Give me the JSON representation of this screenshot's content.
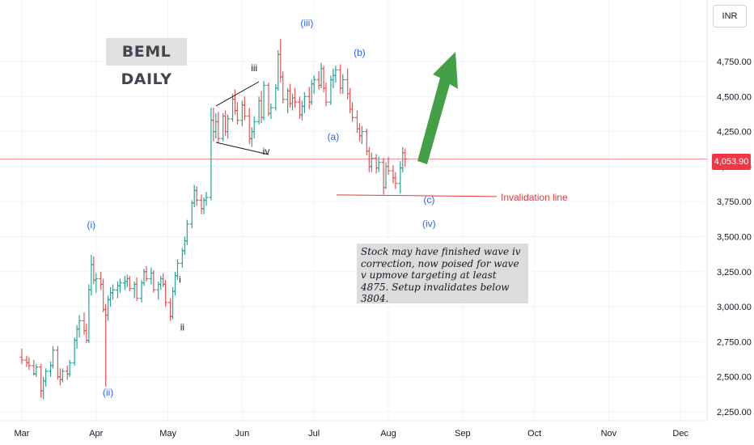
{
  "title": "BEML DAILY",
  "currency": "INR",
  "current_price": "4,053.90",
  "note": "Stock may have finished wave iv correction, now poised for wave v upmove targeting at least 4875. Setup invalidates below 3804.",
  "invalidation_label": "Invalidation line",
  "colors": {
    "up": "#26a69a",
    "down": "#ef5350",
    "label_blue": "#2962ff",
    "label_black": "#131722",
    "invalidation": "#e53935",
    "arrow": "#43a047",
    "price_line": "#f23645"
  },
  "chart_data": {
    "type": "ohlc",
    "title": "BEML DAILY",
    "xlabel": "",
    "ylabel": "",
    "ylim": [
      2200,
      5080
    ],
    "y_ticks": [
      "2,250.00",
      "2,500.00",
      "2,750.00",
      "3,000.00",
      "3,250.00",
      "3,500.00",
      "3,750.00",
      "4,000.00",
      "4,250.00",
      "4,500.00",
      "4,750.00"
    ],
    "y_tick_values": [
      2250,
      2500,
      2750,
      3000,
      3250,
      3500,
      3750,
      4000,
      4250,
      4500,
      4750
    ],
    "x_ticks": [
      "Mar",
      "Apr",
      "May",
      "Jun",
      "Jul",
      "Aug",
      "Sep",
      "Oct",
      "Nov",
      "Dec"
    ],
    "x_tick_days": [
      0,
      31,
      61,
      92,
      122,
      153,
      184,
      214,
      245,
      275
    ],
    "date_range": [
      "2024-03-01",
      "2024-12-15"
    ],
    "last_price": 4053.9,
    "invalidation_level": 3804,
    "target_level": 4875,
    "wave_labels": [
      {
        "text": "(i)",
        "day": 29,
        "price": 3560,
        "color": "blue"
      },
      {
        "text": "(ii)",
        "day": 36,
        "price": 2365,
        "color": "blue"
      },
      {
        "text": "i",
        "day": 66,
        "price": 3170,
        "color": "black"
      },
      {
        "text": "ii",
        "day": 67,
        "price": 2830,
        "color": "black"
      },
      {
        "text": "iii",
        "day": 97,
        "price": 4680,
        "color": "black"
      },
      {
        "text": "iv",
        "day": 102,
        "price": 4085,
        "color": "black"
      },
      {
        "text": "(iii)",
        "day": 119,
        "price": 5000,
        "color": "blue"
      },
      {
        "text": "(a)",
        "day": 130,
        "price": 4190,
        "color": "blue"
      },
      {
        "text": "(b)",
        "day": 141,
        "price": 4790,
        "color": "blue"
      },
      {
        "text": "(c)",
        "day": 170,
        "price": 3740,
        "color": "blue"
      },
      {
        "text": "(iv)",
        "day": 170,
        "price": 3570,
        "color": "blue"
      }
    ],
    "series": [
      {
        "day": 0,
        "o": 2640,
        "h": 2700,
        "l": 2590,
        "c": 2620
      },
      {
        "day": 2,
        "o": 2620,
        "h": 2650,
        "l": 2570,
        "c": 2600
      },
      {
        "day": 3,
        "o": 2600,
        "h": 2640,
        "l": 2550,
        "c": 2580
      },
      {
        "day": 5,
        "o": 2580,
        "h": 2620,
        "l": 2510,
        "c": 2520
      },
      {
        "day": 6,
        "o": 2520,
        "h": 2590,
        "l": 2500,
        "c": 2570
      },
      {
        "day": 8,
        "o": 2570,
        "h": 2590,
        "l": 2350,
        "c": 2400
      },
      {
        "day": 9,
        "o": 2400,
        "h": 2500,
        "l": 2340,
        "c": 2470
      },
      {
        "day": 10,
        "o": 2470,
        "h": 2560,
        "l": 2430,
        "c": 2540
      },
      {
        "day": 12,
        "o": 2540,
        "h": 2610,
        "l": 2500,
        "c": 2580
      },
      {
        "day": 13,
        "o": 2580,
        "h": 2720,
        "l": 2560,
        "c": 2690
      },
      {
        "day": 15,
        "o": 2690,
        "h": 2720,
        "l": 2480,
        "c": 2500
      },
      {
        "day": 16,
        "o": 2500,
        "h": 2560,
        "l": 2440,
        "c": 2480
      },
      {
        "day": 17,
        "o": 2480,
        "h": 2560,
        "l": 2460,
        "c": 2540
      },
      {
        "day": 19,
        "o": 2540,
        "h": 2580,
        "l": 2480,
        "c": 2520
      },
      {
        "day": 20,
        "o": 2520,
        "h": 2620,
        "l": 2500,
        "c": 2600
      },
      {
        "day": 22,
        "o": 2600,
        "h": 2780,
        "l": 2580,
        "c": 2760
      },
      {
        "day": 23,
        "o": 2760,
        "h": 2870,
        "l": 2700,
        "c": 2840
      },
      {
        "day": 24,
        "o": 2840,
        "h": 2940,
        "l": 2780,
        "c": 2900
      },
      {
        "day": 26,
        "o": 2900,
        "h": 2960,
        "l": 2800,
        "c": 2830
      },
      {
        "day": 27,
        "o": 2830,
        "h": 2880,
        "l": 2740,
        "c": 2760
      },
      {
        "day": 28,
        "o": 2760,
        "h": 3160,
        "l": 2740,
        "c": 3120
      },
      {
        "day": 29,
        "o": 3120,
        "h": 3370,
        "l": 3080,
        "c": 3300
      },
      {
        "day": 30,
        "o": 3300,
        "h": 3360,
        "l": 3160,
        "c": 3190
      },
      {
        "day": 31,
        "o": 3190,
        "h": 3240,
        "l": 3100,
        "c": 3200
      },
      {
        "day": 33,
        "o": 3200,
        "h": 3250,
        "l": 3120,
        "c": 3160
      },
      {
        "day": 34,
        "o": 3160,
        "h": 3200,
        "l": 2960,
        "c": 2980
      },
      {
        "day": 35,
        "o": 2980,
        "h": 3020,
        "l": 2430,
        "c": 2940
      },
      {
        "day": 36,
        "o": 2940,
        "h": 3080,
        "l": 2900,
        "c": 3050
      },
      {
        "day": 37,
        "o": 3050,
        "h": 3140,
        "l": 3000,
        "c": 3100
      },
      {
        "day": 38,
        "o": 3100,
        "h": 3160,
        "l": 3050,
        "c": 3120
      },
      {
        "day": 40,
        "o": 3120,
        "h": 3180,
        "l": 3060,
        "c": 3150
      },
      {
        "day": 41,
        "o": 3150,
        "h": 3200,
        "l": 3100,
        "c": 3170
      },
      {
        "day": 43,
        "o": 3170,
        "h": 3220,
        "l": 3120,
        "c": 3180
      },
      {
        "day": 44,
        "o": 3180,
        "h": 3230,
        "l": 3140,
        "c": 3200
      },
      {
        "day": 45,
        "o": 3200,
        "h": 3220,
        "l": 3110,
        "c": 3130
      },
      {
        "day": 47,
        "o": 3130,
        "h": 3180,
        "l": 3060,
        "c": 3160
      },
      {
        "day": 48,
        "o": 3160,
        "h": 3210,
        "l": 3040,
        "c": 3060
      },
      {
        "day": 50,
        "o": 3060,
        "h": 3190,
        "l": 3030,
        "c": 3170
      },
      {
        "day": 51,
        "o": 3170,
        "h": 3270,
        "l": 3150,
        "c": 3250
      },
      {
        "day": 52,
        "o": 3250,
        "h": 3290,
        "l": 3180,
        "c": 3200
      },
      {
        "day": 54,
        "o": 3200,
        "h": 3280,
        "l": 3160,
        "c": 3240
      },
      {
        "day": 55,
        "o": 3240,
        "h": 3260,
        "l": 3100,
        "c": 3120
      },
      {
        "day": 57,
        "o": 3120,
        "h": 3180,
        "l": 3050,
        "c": 3160
      },
      {
        "day": 58,
        "o": 3160,
        "h": 3220,
        "l": 3120,
        "c": 3200
      },
      {
        "day": 59,
        "o": 3200,
        "h": 3240,
        "l": 3140,
        "c": 3160
      },
      {
        "day": 60,
        "o": 3160,
        "h": 3190,
        "l": 3000,
        "c": 3030
      },
      {
        "day": 62,
        "o": 3030,
        "h": 3060,
        "l": 2900,
        "c": 2930
      },
      {
        "day": 63,
        "o": 2930,
        "h": 3140,
        "l": 2910,
        "c": 3110
      },
      {
        "day": 64,
        "o": 3110,
        "h": 3250,
        "l": 3080,
        "c": 3220
      },
      {
        "day": 65,
        "o": 3220,
        "h": 3340,
        "l": 3190,
        "c": 3310
      },
      {
        "day": 67,
        "o": 3310,
        "h": 3420,
        "l": 3280,
        "c": 3400
      },
      {
        "day": 68,
        "o": 3400,
        "h": 3500,
        "l": 3370,
        "c": 3470
      },
      {
        "day": 69,
        "o": 3470,
        "h": 3620,
        "l": 3440,
        "c": 3590
      },
      {
        "day": 71,
        "o": 3590,
        "h": 3760,
        "l": 3560,
        "c": 3740
      },
      {
        "day": 72,
        "o": 3740,
        "h": 3870,
        "l": 3710,
        "c": 3830
      },
      {
        "day": 73,
        "o": 3830,
        "h": 3860,
        "l": 3720,
        "c": 3760
      },
      {
        "day": 75,
        "o": 3760,
        "h": 3800,
        "l": 3660,
        "c": 3700
      },
      {
        "day": 76,
        "o": 3700,
        "h": 3780,
        "l": 3660,
        "c": 3760
      },
      {
        "day": 77,
        "o": 3760,
        "h": 3820,
        "l": 3720,
        "c": 3780
      },
      {
        "day": 79,
        "o": 3780,
        "h": 4420,
        "l": 3760,
        "c": 4330
      },
      {
        "day": 80,
        "o": 4330,
        "h": 4420,
        "l": 4180,
        "c": 4250
      },
      {
        "day": 81,
        "o": 4250,
        "h": 4380,
        "l": 4200,
        "c": 4320
      },
      {
        "day": 82,
        "o": 4320,
        "h": 4390,
        "l": 4170,
        "c": 4200
      },
      {
        "day": 84,
        "o": 4200,
        "h": 4380,
        "l": 4180,
        "c": 4360
      },
      {
        "day": 85,
        "o": 4360,
        "h": 4400,
        "l": 4220,
        "c": 4250
      },
      {
        "day": 86,
        "o": 4250,
        "h": 4370,
        "l": 4200,
        "c": 4340
      },
      {
        "day": 88,
        "o": 4340,
        "h": 4520,
        "l": 4320,
        "c": 4480
      },
      {
        "day": 89,
        "o": 4480,
        "h": 4550,
        "l": 4370,
        "c": 4400
      },
      {
        "day": 90,
        "o": 4400,
        "h": 4460,
        "l": 4300,
        "c": 4330
      },
      {
        "day": 92,
        "o": 4330,
        "h": 4470,
        "l": 4290,
        "c": 4440
      },
      {
        "day": 93,
        "o": 4440,
        "h": 4500,
        "l": 4330,
        "c": 4360
      },
      {
        "day": 95,
        "o": 4360,
        "h": 4420,
        "l": 4160,
        "c": 4200
      },
      {
        "day": 96,
        "o": 4200,
        "h": 4280,
        "l": 4140,
        "c": 4250
      },
      {
        "day": 97,
        "o": 4250,
        "h": 4360,
        "l": 4200,
        "c": 4320
      },
      {
        "day": 99,
        "o": 4320,
        "h": 4500,
        "l": 4300,
        "c": 4470
      },
      {
        "day": 100,
        "o": 4470,
        "h": 4540,
        "l": 4310,
        "c": 4350
      },
      {
        "day": 101,
        "o": 4350,
        "h": 4610,
        "l": 4330,
        "c": 4580
      },
      {
        "day": 103,
        "o": 4580,
        "h": 4600,
        "l": 4360,
        "c": 4380
      },
      {
        "day": 104,
        "o": 4380,
        "h": 4450,
        "l": 4340,
        "c": 4420
      },
      {
        "day": 106,
        "o": 4420,
        "h": 4590,
        "l": 4400,
        "c": 4560
      },
      {
        "day": 107,
        "o": 4560,
        "h": 4830,
        "l": 4540,
        "c": 4800
      },
      {
        "day": 108,
        "o": 4800,
        "h": 4910,
        "l": 4600,
        "c": 4640
      },
      {
        "day": 109,
        "o": 4640,
        "h": 4680,
        "l": 4450,
        "c": 4480
      },
      {
        "day": 111,
        "o": 4480,
        "h": 4560,
        "l": 4380,
        "c": 4540
      },
      {
        "day": 112,
        "o": 4540,
        "h": 4590,
        "l": 4420,
        "c": 4450
      },
      {
        "day": 113,
        "o": 4450,
        "h": 4520,
        "l": 4400,
        "c": 4490
      },
      {
        "day": 114,
        "o": 4490,
        "h": 4560,
        "l": 4420,
        "c": 4460
      },
      {
        "day": 116,
        "o": 4460,
        "h": 4500,
        "l": 4340,
        "c": 4370
      },
      {
        "day": 117,
        "o": 4370,
        "h": 4470,
        "l": 4330,
        "c": 4430
      },
      {
        "day": 118,
        "o": 4430,
        "h": 4530,
        "l": 4380,
        "c": 4500
      },
      {
        "day": 120,
        "o": 4500,
        "h": 4570,
        "l": 4410,
        "c": 4460
      },
      {
        "day": 121,
        "o": 4460,
        "h": 4620,
        "l": 4440,
        "c": 4590
      },
      {
        "day": 122,
        "o": 4590,
        "h": 4650,
        "l": 4520,
        "c": 4620
      },
      {
        "day": 124,
        "o": 4620,
        "h": 4680,
        "l": 4550,
        "c": 4580
      },
      {
        "day": 125,
        "o": 4580,
        "h": 4740,
        "l": 4560,
        "c": 4700
      },
      {
        "day": 126,
        "o": 4700,
        "h": 4720,
        "l": 4530,
        "c": 4560
      },
      {
        "day": 127,
        "o": 4560,
        "h": 4600,
        "l": 4430,
        "c": 4460
      },
      {
        "day": 129,
        "o": 4460,
        "h": 4650,
        "l": 4440,
        "c": 4620
      },
      {
        "day": 130,
        "o": 4620,
        "h": 4700,
        "l": 4560,
        "c": 4650
      },
      {
        "day": 131,
        "o": 4650,
        "h": 4720,
        "l": 4600,
        "c": 4690
      },
      {
        "day": 133,
        "o": 4690,
        "h": 4730,
        "l": 4520,
        "c": 4560
      },
      {
        "day": 134,
        "o": 4560,
        "h": 4660,
        "l": 4520,
        "c": 4620
      },
      {
        "day": 136,
        "o": 4620,
        "h": 4700,
        "l": 4480,
        "c": 4520
      },
      {
        "day": 137,
        "o": 4520,
        "h": 4560,
        "l": 4380,
        "c": 4410
      },
      {
        "day": 138,
        "o": 4410,
        "h": 4460,
        "l": 4320,
        "c": 4350
      },
      {
        "day": 140,
        "o": 4350,
        "h": 4400,
        "l": 4240,
        "c": 4270
      },
      {
        "day": 141,
        "o": 4270,
        "h": 4310,
        "l": 4180,
        "c": 4220
      },
      {
        "day": 142,
        "o": 4220,
        "h": 4290,
        "l": 4160,
        "c": 4250
      },
      {
        "day": 144,
        "o": 4250,
        "h": 4270,
        "l": 4080,
        "c": 4110
      },
      {
        "day": 145,
        "o": 4110,
        "h": 4140,
        "l": 3960,
        "c": 4000
      },
      {
        "day": 146,
        "o": 4000,
        "h": 4100,
        "l": 3960,
        "c": 4060
      },
      {
        "day": 148,
        "o": 4060,
        "h": 4090,
        "l": 3950,
        "c": 3990
      },
      {
        "day": 149,
        "o": 3990,
        "h": 4070,
        "l": 3960,
        "c": 4030
      },
      {
        "day": 151,
        "o": 4030,
        "h": 4060,
        "l": 3800,
        "c": 3850
      },
      {
        "day": 152,
        "o": 3850,
        "h": 4030,
        "l": 3840,
        "c": 4000
      },
      {
        "day": 153,
        "o": 4000,
        "h": 4070,
        "l": 3940,
        "c": 3970
      },
      {
        "day": 155,
        "o": 3970,
        "h": 4010,
        "l": 3880,
        "c": 3920
      },
      {
        "day": 156,
        "o": 3920,
        "h": 3960,
        "l": 3840,
        "c": 3880
      },
      {
        "day": 158,
        "o": 3880,
        "h": 4040,
        "l": 3810,
        "c": 3990
      },
      {
        "day": 159,
        "o": 3990,
        "h": 4140,
        "l": 3960,
        "c": 4100
      },
      {
        "day": 160,
        "o": 4100,
        "h": 4130,
        "l": 4000,
        "c": 4054
      }
    ]
  }
}
